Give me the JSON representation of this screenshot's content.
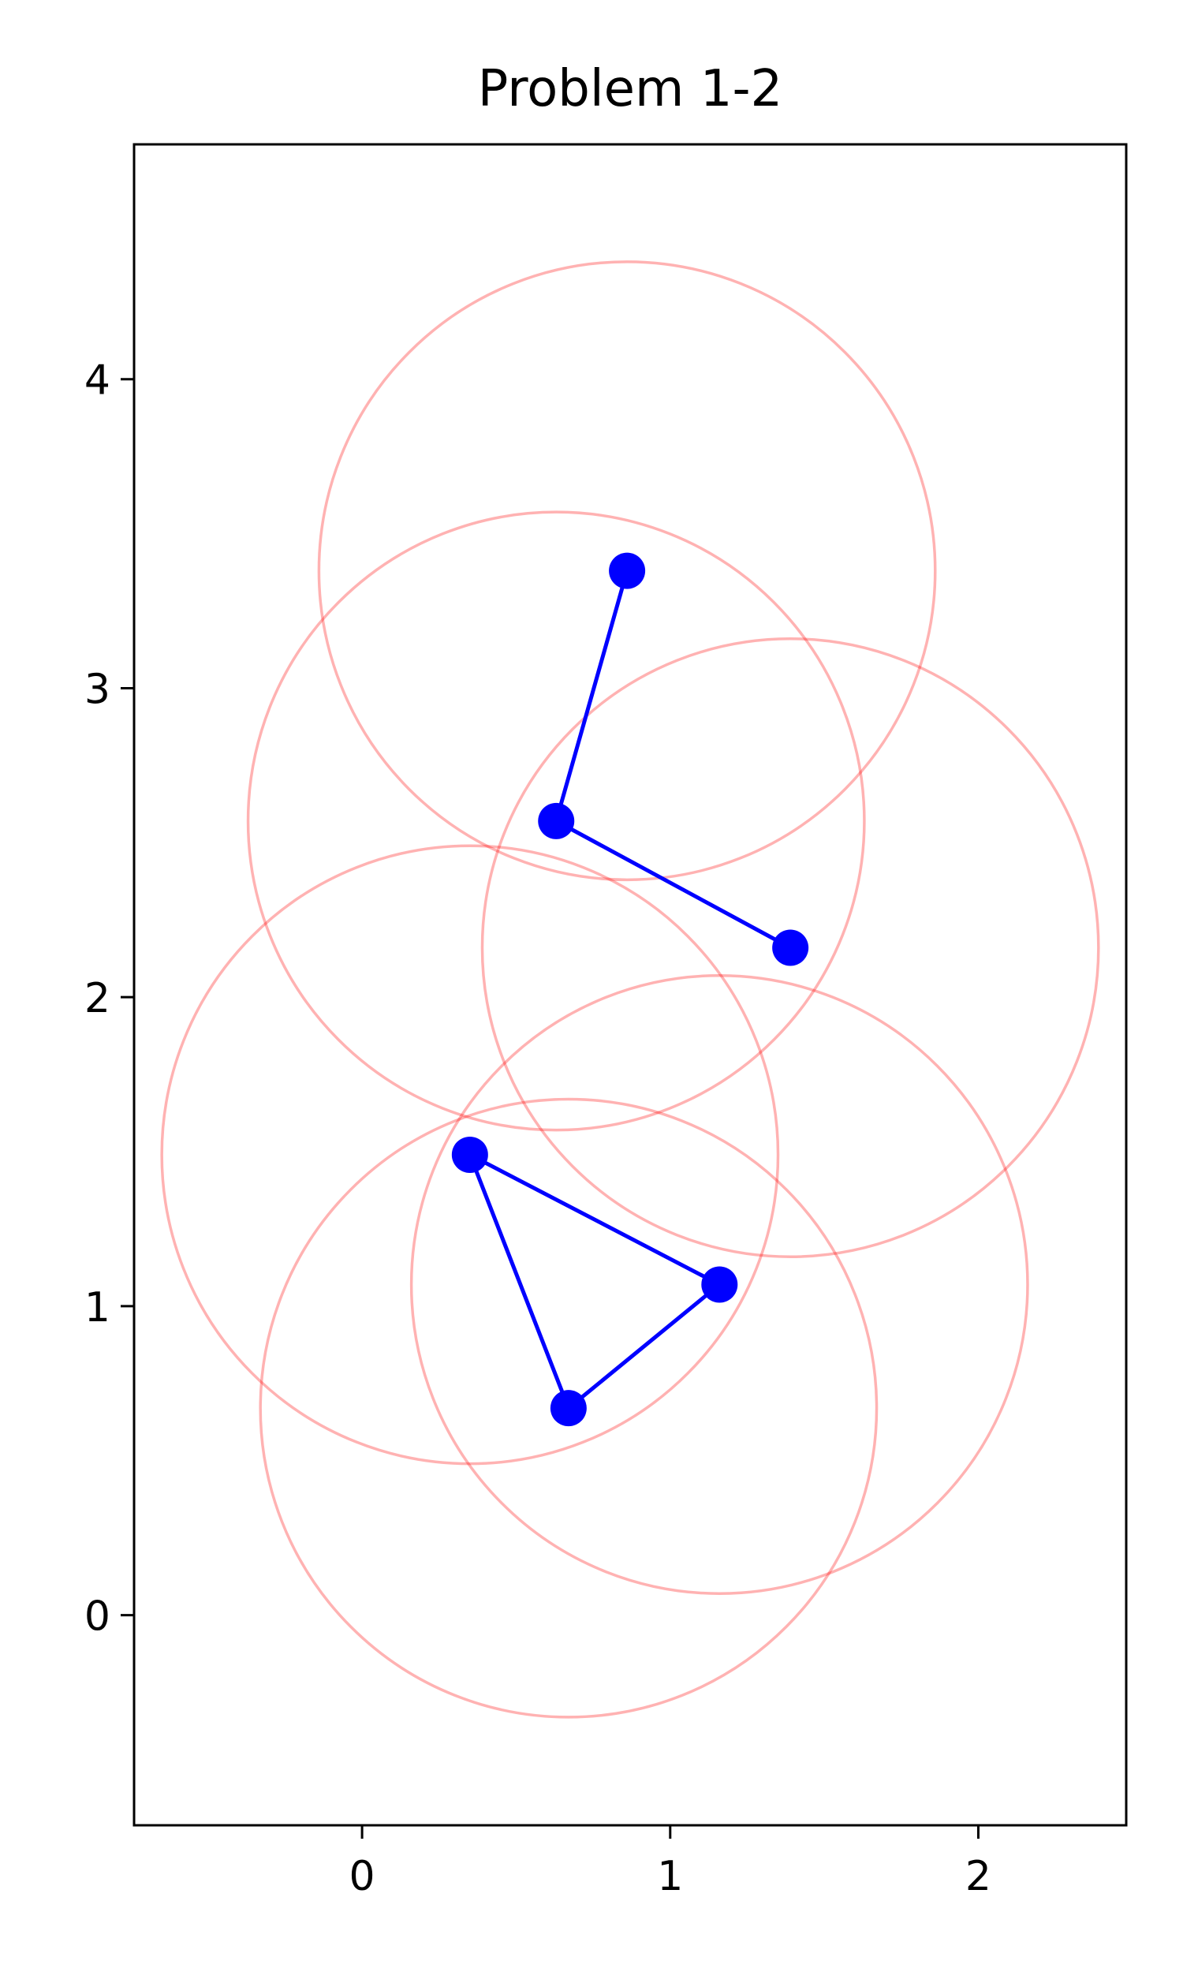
{
  "chart_data": {
    "type": "scatter",
    "title": "Problem 1-2",
    "xlabel": "",
    "ylabel": "",
    "xlim": [
      -0.74,
      2.48
    ],
    "ylim": [
      -0.68,
      4.76
    ],
    "xticks": [
      0,
      1,
      2
    ],
    "yticks": [
      0,
      1,
      2,
      3,
      4
    ],
    "grid": false,
    "legend": "none",
    "circle_radius": 1.0,
    "colors": {
      "points": "#0000ff",
      "edges": "#0000ff",
      "circles": "#ff0000",
      "circle_alpha": 0.3
    },
    "points": [
      {
        "x": 0.86,
        "y": 3.38
      },
      {
        "x": 0.63,
        "y": 2.57
      },
      {
        "x": 1.39,
        "y": 2.16
      },
      {
        "x": 0.35,
        "y": 1.49
      },
      {
        "x": 1.16,
        "y": 1.07
      },
      {
        "x": 0.67,
        "y": 0.67
      }
    ],
    "edges": [
      [
        0,
        1
      ],
      [
        1,
        2
      ],
      [
        3,
        4
      ],
      [
        4,
        5
      ],
      [
        5,
        3
      ]
    ]
  }
}
